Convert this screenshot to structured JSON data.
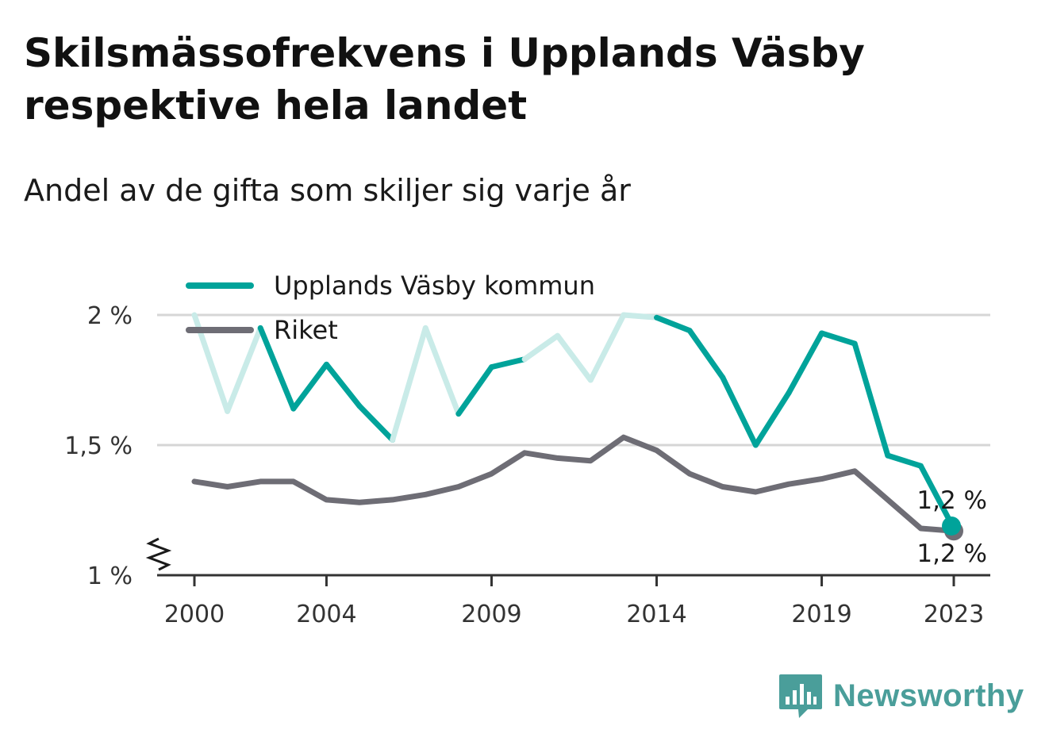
{
  "title": "Skilsmässofrekvens i Upplands Väsby respektive hela landet",
  "subtitle": "Andel av de gifta som skiljer sig varje år",
  "brand": {
    "name": "Newsworthy",
    "color": "#4a9e9a",
    "icon": "bar-chart-bubble-icon"
  },
  "colors": {
    "series_main": "#00a39a",
    "series_main_faded": "#c9ebe8",
    "series_ref": "#6e6d75",
    "grid": "#d6d6d6",
    "axis": "#333333"
  },
  "chart_data": {
    "type": "line",
    "x": [
      2000,
      2001,
      2002,
      2003,
      2004,
      2005,
      2006,
      2007,
      2008,
      2009,
      2010,
      2011,
      2012,
      2013,
      2014,
      2015,
      2016,
      2017,
      2018,
      2019,
      2020,
      2021,
      2022,
      2023
    ],
    "x_ticks": [
      "2000",
      "2004",
      "2009",
      "2014",
      "2019",
      "2023"
    ],
    "y_ticks": [
      "1 %",
      "1,5 %",
      "2 %"
    ],
    "ylim": [
      1.0,
      2.0
    ],
    "y_axis_break": true,
    "grid": true,
    "legend_position": "top-left",
    "series": [
      {
        "name": "Upplands Väsby kommun",
        "values": [
          2.0,
          1.63,
          1.95,
          1.64,
          1.81,
          1.65,
          1.52,
          1.95,
          1.62,
          1.8,
          1.83,
          1.92,
          1.75,
          2.0,
          1.99,
          1.94,
          1.76,
          1.5,
          1.7,
          1.93,
          1.89,
          1.46,
          1.42,
          1.18
        ],
        "faded_segments_years": [
          [
            2000,
            2001
          ],
          [
            2001,
            2002
          ],
          [
            2006,
            2007
          ],
          [
            2007,
            2008
          ],
          [
            2010,
            2011
          ],
          [
            2011,
            2012
          ],
          [
            2012,
            2013
          ],
          [
            2013,
            2014
          ]
        ],
        "end_label": "1,2 %"
      },
      {
        "name": "Riket",
        "values": [
          1.36,
          1.34,
          1.36,
          1.36,
          1.29,
          1.28,
          1.29,
          1.31,
          1.34,
          1.39,
          1.47,
          1.45,
          1.44,
          1.53,
          1.48,
          1.39,
          1.34,
          1.32,
          1.35,
          1.37,
          1.4,
          1.29,
          1.18,
          1.17
        ],
        "end_label": "1,2 %"
      }
    ]
  }
}
